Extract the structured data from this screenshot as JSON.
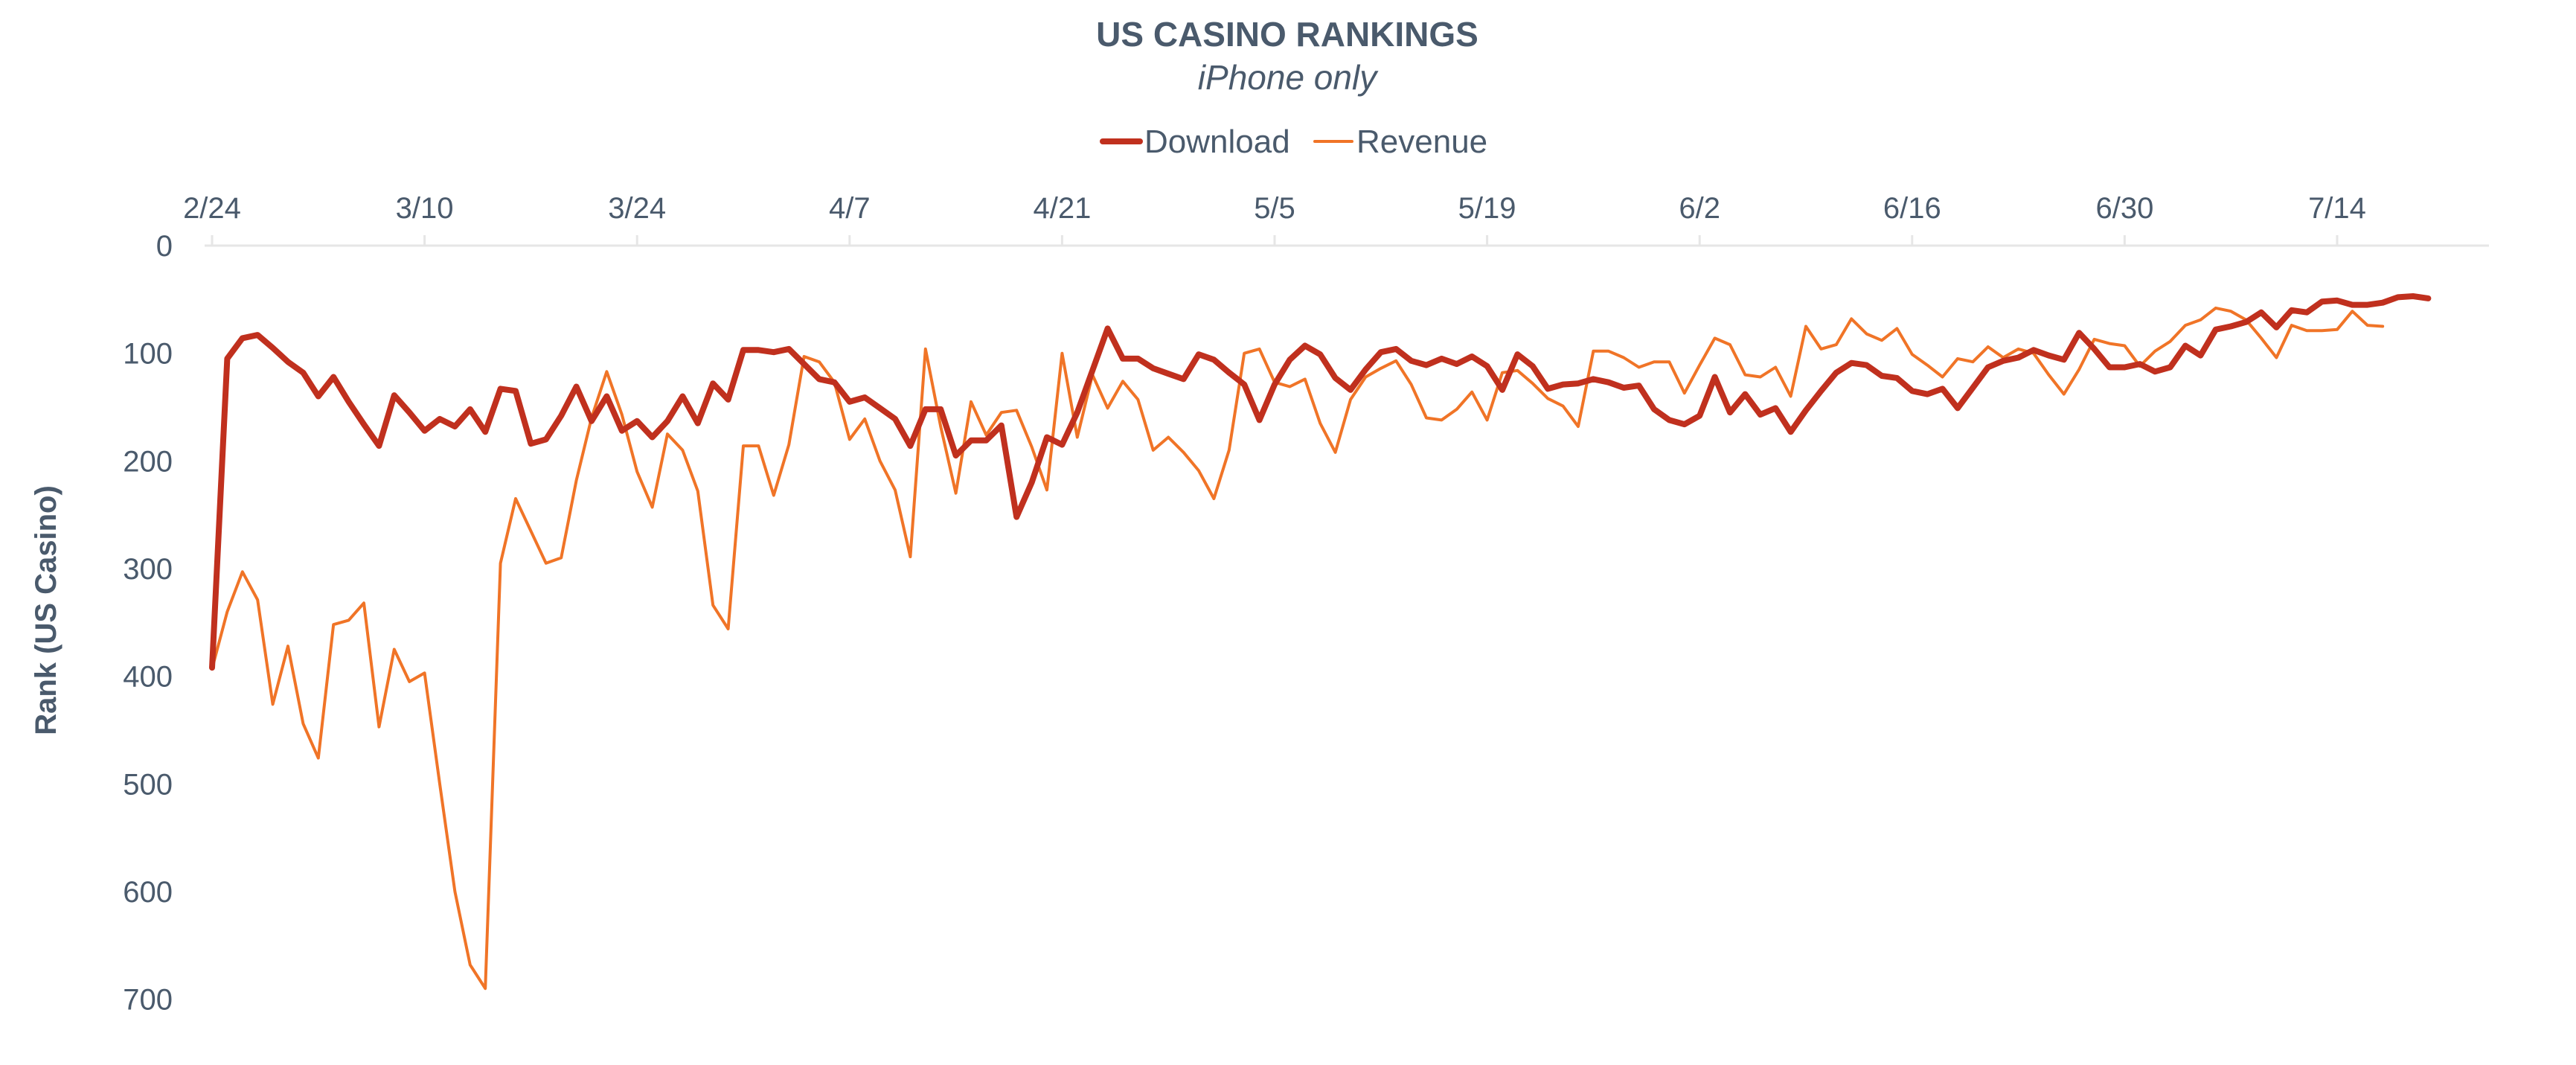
{
  "chart_data": {
    "type": "line",
    "title": "US CASINO RANKINGS",
    "subtitle": "iPhone only",
    "xlabel": "",
    "ylabel": "Rank (US Casino)",
    "y_inverted": true,
    "ylim": [
      0,
      750
    ],
    "yticks": [
      0,
      100,
      200,
      300,
      400,
      500,
      600,
      700
    ],
    "xlim_days": [
      0,
      150
    ],
    "x_tick_days": [
      0,
      14,
      28,
      42,
      56,
      70,
      84,
      98,
      112,
      126,
      140
    ],
    "x_tick_labels": [
      "2/24",
      "3/10",
      "3/24",
      "4/7",
      "4/21",
      "5/5",
      "5/19",
      "6/2",
      "6/16",
      "6/30",
      "7/14"
    ],
    "legend_position": "top-center",
    "grid": false,
    "colors": {
      "download": "#c0301e",
      "revenue": "#f07427",
      "axis": "#e6e6e6",
      "text": "#4a5a6c"
    },
    "series": [
      {
        "name": "Download",
        "color": "#c0301e",
        "style": "thick",
        "values": [
          392,
          105,
          86,
          83,
          95,
          108,
          118,
          140,
          122,
          145,
          166,
          186,
          139,
          155,
          172,
          161,
          168,
          152,
          173,
          133,
          135,
          184,
          180,
          158,
          131,
          163,
          140,
          172,
          163,
          178,
          163,
          140,
          165,
          128,
          143,
          97,
          97,
          99,
          96,
          110,
          124,
          127,
          145,
          141,
          151,
          161,
          186,
          152,
          152,
          195,
          181,
          181,
          167,
          252,
          220,
          178,
          185,
          155,
          116,
          77,
          105,
          105,
          114,
          119,
          124,
          101,
          106,
          118,
          129,
          162,
          129,
          106,
          93,
          101,
          123,
          134,
          115,
          99,
          96,
          107,
          111,
          105,
          110,
          103,
          112,
          134,
          101,
          112,
          133,
          129,
          128,
          124,
          127,
          132,
          130,
          152,
          162,
          166,
          158,
          122,
          155,
          138,
          157,
          151,
          173,
          153,
          135,
          118,
          109,
          111,
          121,
          123,
          135,
          138,
          133,
          151,
          132,
          113,
          107,
          104,
          97,
          102,
          106,
          81,
          96,
          113,
          113,
          110,
          117,
          113,
          93,
          102,
          78,
          75,
          71,
          62,
          76,
          60,
          62,
          52,
          51,
          55,
          55,
          53,
          48,
          47,
          49
        ]
      },
      {
        "name": "Revenue",
        "color": "#f07427",
        "style": "thin",
        "values": [
          393,
          340,
          303,
          329,
          426,
          372,
          444,
          476,
          352,
          348,
          332,
          447,
          375,
          405,
          397,
          500,
          600,
          668,
          690,
          295,
          235,
          265,
          295,
          290,
          218,
          160,
          117,
          157,
          210,
          243,
          175,
          190,
          228,
          334,
          356,
          186,
          186,
          232,
          185,
          103,
          108,
          127,
          180,
          161,
          200,
          227,
          289,
          96,
          168,
          230,
          145,
          176,
          155,
          153,
          187,
          227,
          100,
          178,
          120,
          151,
          126,
          143,
          190,
          178,
          192,
          209,
          235,
          190,
          100,
          96,
          127,
          131,
          124,
          165,
          192,
          143,
          122,
          114,
          107,
          129,
          160,
          162,
          152,
          136,
          162,
          118,
          116,
          128,
          142,
          149,
          168,
          98,
          98,
          104,
          113,
          108,
          108,
          137,
          111,
          86,
          92,
          120,
          122,
          113,
          140,
          75,
          96,
          92,
          68,
          82,
          88,
          77,
          101,
          111,
          122,
          105,
          108,
          94,
          104,
          96,
          100,
          120,
          138,
          115,
          87,
          91,
          93,
          112,
          98,
          89,
          74,
          69,
          58,
          61,
          69,
          86,
          104,
          74,
          79,
          79,
          78,
          61,
          74,
          75
        ]
      }
    ]
  }
}
